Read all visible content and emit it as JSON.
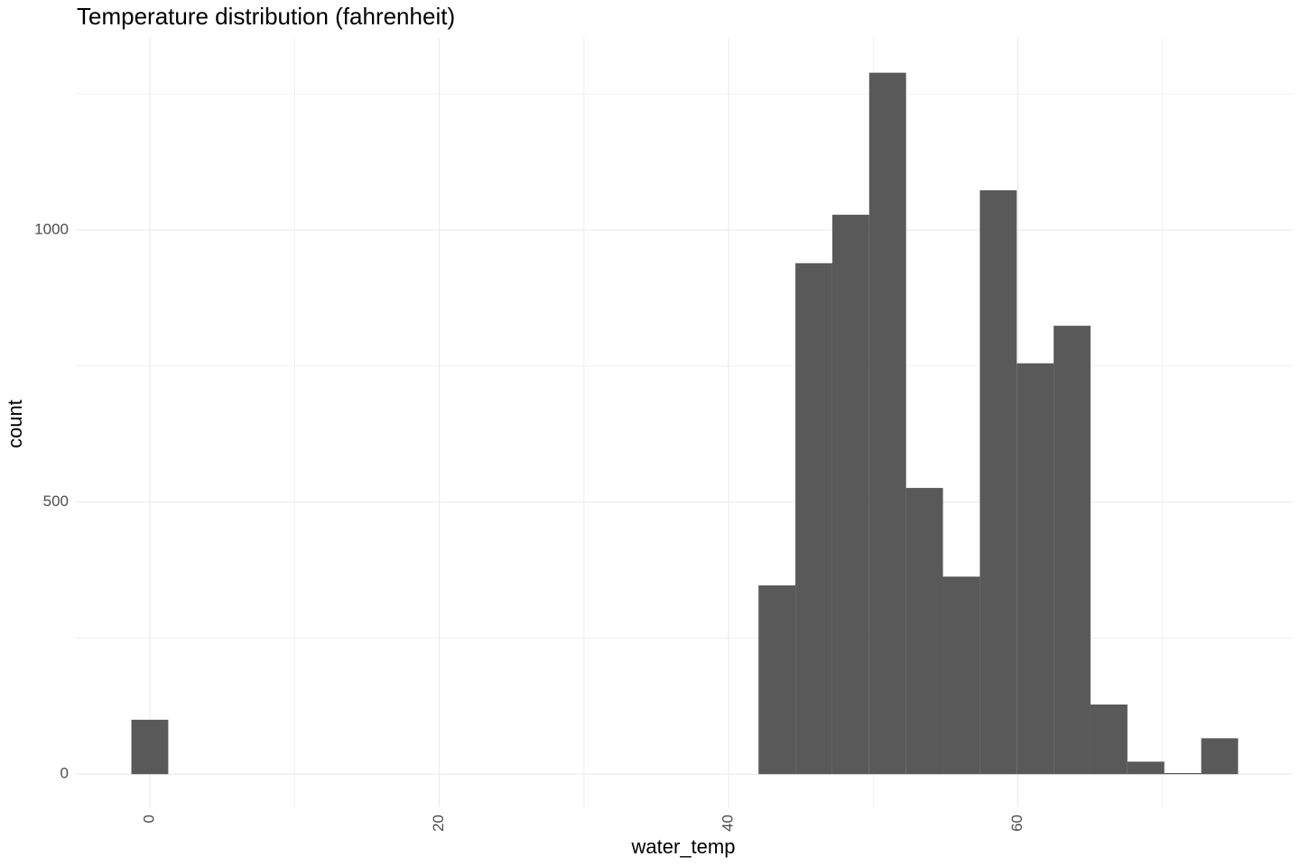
{
  "chart_data": {
    "type": "histogram",
    "title": "Temperature distribution (fahrenheit)",
    "x_label": "water_temp",
    "y_label": "count",
    "bins": [
      -1.28,
      1.27,
      3.82,
      6.37,
      8.92,
      11.47,
      14.02,
      16.57,
      19.12,
      21.67,
      24.22,
      26.77,
      29.32,
      31.87,
      34.42,
      36.97,
      39.52,
      42.07,
      44.62,
      47.17,
      49.72,
      52.27,
      54.82,
      57.37,
      59.92,
      62.47,
      65.02,
      67.57,
      70.12,
      72.67,
      75.22
    ],
    "values": [
      100,
      0,
      0,
      0,
      0,
      0,
      0,
      0,
      0,
      0,
      0,
      0,
      0,
      0,
      0,
      0,
      0,
      347,
      939,
      1028,
      1289,
      526,
      363,
      1073,
      755,
      824,
      128,
      23,
      2,
      66
    ],
    "color": "#595959",
    "xlim": [
      -5.12,
      79.0
    ],
    "ylim": [
      -61,
      1353
    ],
    "xticks": [
      0,
      20,
      40,
      60
    ],
    "yticks": [
      0,
      500,
      1000
    ],
    "x_minor_grid": [
      10,
      30,
      50,
      70
    ],
    "y_minor_grid": [
      250,
      750,
      1250
    ],
    "grid": true
  }
}
